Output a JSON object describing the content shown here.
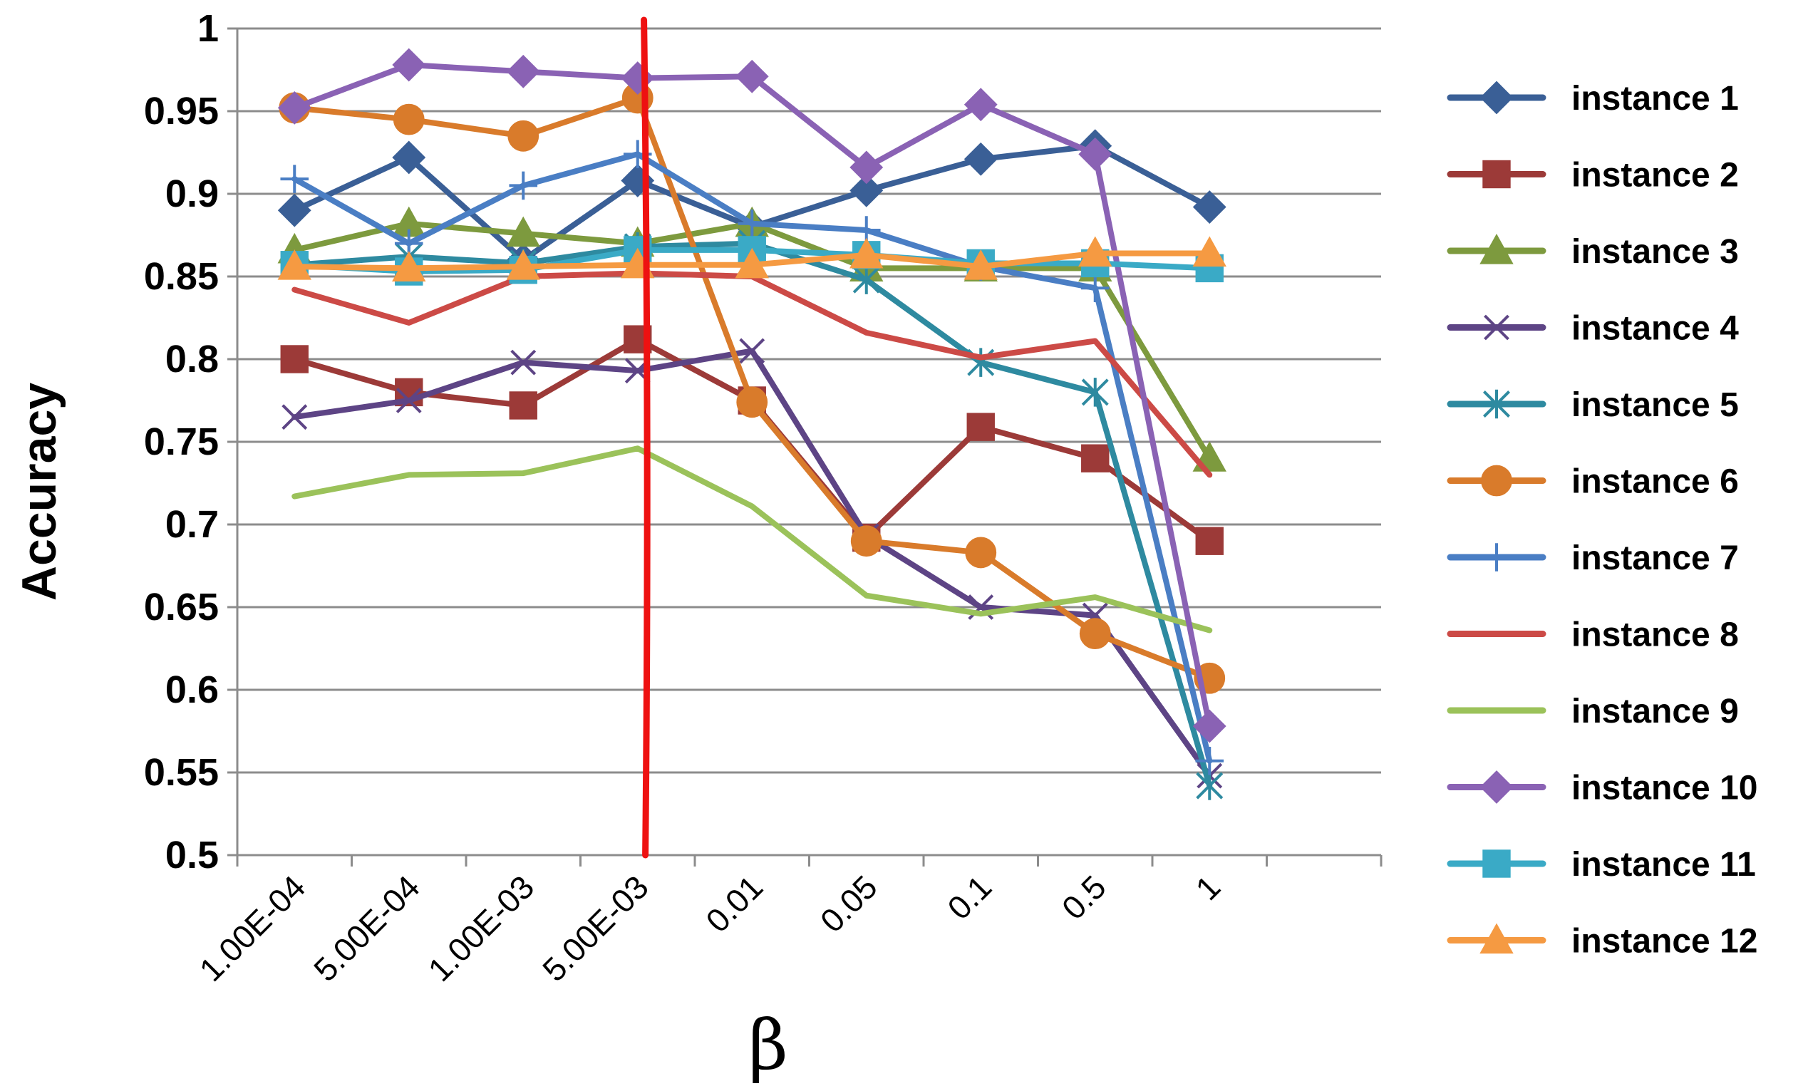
{
  "chart_data": {
    "type": "line",
    "title": "",
    "xlabel": "β",
    "ylabel": "Accuracy",
    "ylim": [
      0.5,
      1
    ],
    "yticks": [
      "0.5",
      "0.55",
      "0.6",
      "0.65",
      "0.7",
      "0.75",
      "0.8",
      "0.85",
      "0.9",
      "0.95",
      "1"
    ],
    "categories": [
      "1.00E-04",
      "5.00E-04",
      "1.00E-03",
      "5.00E-03",
      "0.01",
      "0.05",
      "0.1",
      "0.5",
      "1"
    ],
    "grid": "horizontal",
    "legend_position": "right",
    "vertical_marker": {
      "between": [
        "5.00E-03",
        "0.01"
      ],
      "color": "#ee1111"
    },
    "series": [
      {
        "name": "instance 1",
        "color": "#3a5f96",
        "marker": "diamond",
        "values": [
          0.89,
          0.922,
          0.86,
          0.908,
          0.88,
          0.902,
          0.921,
          0.929,
          0.892
        ]
      },
      {
        "name": "instance 2",
        "color": "#9c3a38",
        "marker": "square",
        "values": [
          0.8,
          0.78,
          0.772,
          0.812,
          0.775,
          0.692,
          0.759,
          0.74,
          0.69
        ]
      },
      {
        "name": "instance 3",
        "color": "#7d9a3e",
        "marker": "triangle",
        "values": [
          0.866,
          0.882,
          0.876,
          0.87,
          0.882,
          0.855,
          0.855,
          0.855,
          0.74
        ]
      },
      {
        "name": "instance 4",
        "color": "#5d4485",
        "marker": "x",
        "values": [
          0.765,
          0.775,
          0.798,
          0.793,
          0.805,
          0.693,
          0.65,
          0.645,
          0.548
        ]
      },
      {
        "name": "instance 5",
        "color": "#2e8aa0",
        "marker": "star",
        "values": [
          0.857,
          0.862,
          0.858,
          0.868,
          0.87,
          0.848,
          0.798,
          0.78,
          0.542
        ]
      },
      {
        "name": "instance 6",
        "color": "#d97b2b",
        "marker": "circle",
        "values": [
          0.952,
          0.945,
          0.935,
          0.958,
          0.774,
          0.69,
          0.683,
          0.634,
          0.607
        ]
      },
      {
        "name": "instance 7",
        "color": "#4a7ec4",
        "marker": "plus",
        "values": [
          0.909,
          0.87,
          0.905,
          0.924,
          0.882,
          0.878,
          0.856,
          0.843,
          0.557
        ]
      },
      {
        "name": "instance 8",
        "color": "#cc4a46",
        "marker": "none",
        "values": [
          0.842,
          0.822,
          0.85,
          0.852,
          0.85,
          0.816,
          0.801,
          0.811,
          0.73
        ]
      },
      {
        "name": "instance 9",
        "color": "#9bc25a",
        "marker": "none",
        "values": [
          0.717,
          0.73,
          0.731,
          0.746,
          0.711,
          0.657,
          0.646,
          0.656,
          0.636
        ]
      },
      {
        "name": "instance 10",
        "color": "#8a62b4",
        "marker": "diamond",
        "values": [
          0.952,
          0.978,
          0.974,
          0.97,
          0.971,
          0.916,
          0.954,
          0.924,
          0.578
        ]
      },
      {
        "name": "instance 11",
        "color": "#3aaac6",
        "marker": "square",
        "values": [
          0.857,
          0.853,
          0.854,
          0.866,
          0.866,
          0.863,
          0.858,
          0.858,
          0.855
        ]
      },
      {
        "name": "instance 12",
        "color": "#f59a42",
        "marker": "triangle",
        "values": [
          0.856,
          0.855,
          0.856,
          0.857,
          0.857,
          0.863,
          0.856,
          0.864,
          0.864
        ]
      }
    ]
  }
}
